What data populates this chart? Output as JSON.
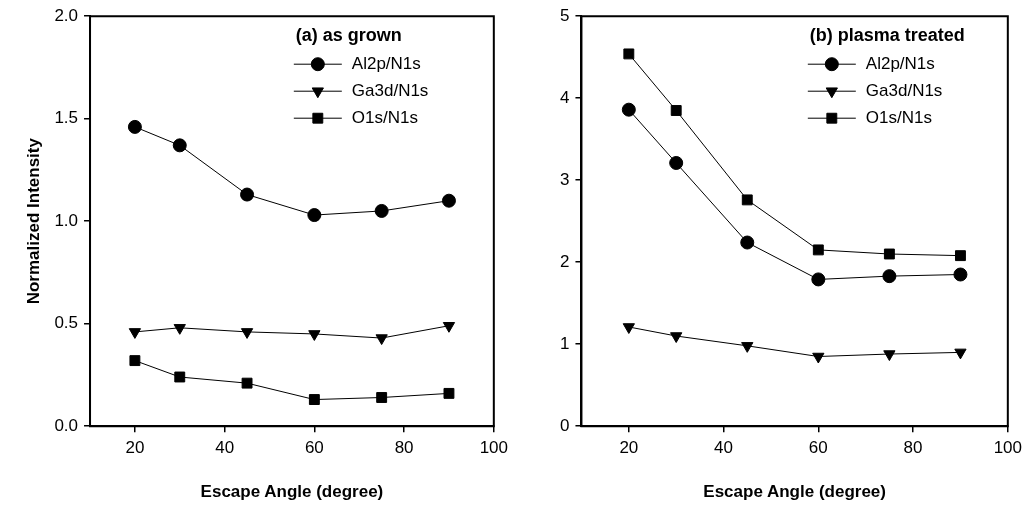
{
  "chart_data": [
    {
      "type": "line",
      "xlabel": "Escape Angle (degree)",
      "ylabel": "Normalized Intensity",
      "legend_title": "(a) as grown",
      "legend": "top right",
      "grid": false,
      "line_style": "solid",
      "x": [
        20,
        30,
        45,
        60,
        75,
        90
      ],
      "xlim": [
        10,
        100
      ],
      "xticks": [
        20,
        40,
        60,
        80,
        100
      ],
      "ylim": [
        0,
        2
      ],
      "yticks": [
        {
          "value": 0,
          "label": "0.0"
        },
        0.5,
        {
          "value": 1,
          "label": "1.0"
        },
        1.5,
        {
          "value": 2,
          "label": "2.0"
        }
      ],
      "series": [
        {
          "name": "Al2p/N1s",
          "color": "#000000",
          "marker": "circle",
          "values": [
            1.46,
            1.37,
            1.13,
            1.03,
            1.05,
            1.1
          ]
        },
        {
          "name": "Ga3d/N1s",
          "color": "#000000",
          "marker": "triangle",
          "values": [
            0.46,
            0.48,
            0.46,
            0.45,
            0.43,
            0.49
          ]
        },
        {
          "name": "O1s/N1s",
          "color": "#000000",
          "marker": "square",
          "values": [
            0.32,
            0.24,
            0.21,
            0.13,
            0.14,
            0.16
          ]
        }
      ]
    },
    {
      "type": "line",
      "xlabel": "Escape Angle (degree)",
      "legend_title": "(b) plasma treated",
      "legend": "top right",
      "grid": false,
      "line_style": "solid",
      "x": [
        20,
        30,
        45,
        60,
        75,
        90
      ],
      "xlim": [
        10,
        100
      ],
      "xticks": [
        20,
        40,
        60,
        80,
        100
      ],
      "ylim": [
        0,
        5
      ],
      "yticks": [
        0,
        1,
        2,
        3,
        4,
        5
      ],
      "series": [
        {
          "name": "Al2p/N1s",
          "color": "#000000",
          "marker": "circle",
          "values": [
            3.86,
            3.21,
            2.24,
            1.79,
            1.83,
            1.85
          ]
        },
        {
          "name": "Ga3d/N1s",
          "color": "#000000",
          "marker": "triangle",
          "values": [
            1.21,
            1.1,
            0.98,
            0.85,
            0.88,
            0.9
          ]
        },
        {
          "name": "O1s/N1s",
          "color": "#000000",
          "marker": "square",
          "values": [
            4.54,
            3.85,
            2.76,
            2.15,
            2.1,
            2.08
          ]
        }
      ]
    }
  ]
}
